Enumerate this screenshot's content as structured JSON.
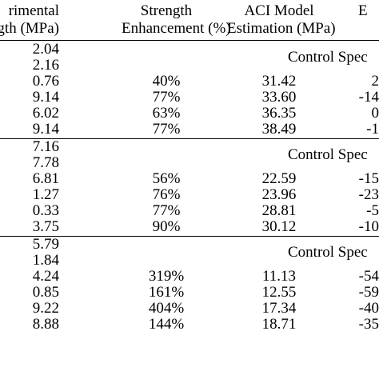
{
  "headers": {
    "line1": {
      "experimental": "rimental",
      "enhancement": "Strength",
      "aci": "ACI Model",
      "error": "E"
    },
    "line2": {
      "experimental": "gth (MPa)",
      "enhancement": "Enhancement (%)",
      "aci": "Estimation (MPa)",
      "error": ""
    }
  },
  "groups": [
    {
      "label": "Control Spec",
      "controls": [
        "2.04",
        "2.16"
      ],
      "rows": [
        {
          "experimental": "0.76",
          "enhancement": "40%",
          "aci": "31.42",
          "error": "2"
        },
        {
          "experimental": "9.14",
          "enhancement": "77%",
          "aci": "33.60",
          "error": "-14"
        },
        {
          "experimental": "6.02",
          "enhancement": "63%",
          "aci": "36.35",
          "error": "0"
        },
        {
          "experimental": "9.14",
          "enhancement": "77%",
          "aci": "38.49",
          "error": "-1"
        }
      ]
    },
    {
      "label": "Control Spec",
      "controls": [
        "7.16",
        "7.78"
      ],
      "rows": [
        {
          "experimental": "6.81",
          "enhancement": "56%",
          "aci": "22.59",
          "error": "-15"
        },
        {
          "experimental": "1.27",
          "enhancement": "76%",
          "aci": "23.96",
          "error": "-23"
        },
        {
          "experimental": "0.33",
          "enhancement": "77%",
          "aci": "28.81",
          "error": "-5"
        },
        {
          "experimental": "3.75",
          "enhancement": "90%",
          "aci": "30.12",
          "error": "-10"
        }
      ]
    },
    {
      "label": "Control Spec",
      "controls": [
        "5.79",
        "1.84"
      ],
      "rows": [
        {
          "experimental": "4.24",
          "enhancement": "319%",
          "aci": "11.13",
          "error": "-54"
        },
        {
          "experimental": "0.85",
          "enhancement": "161%",
          "aci": "12.55",
          "error": "-59"
        },
        {
          "experimental": "9.22",
          "enhancement": "404%",
          "aci": "17.34",
          "error": "-40"
        },
        {
          "experimental": "8.88",
          "enhancement": "144%",
          "aci": "18.71",
          "error": "-35"
        }
      ]
    }
  ]
}
